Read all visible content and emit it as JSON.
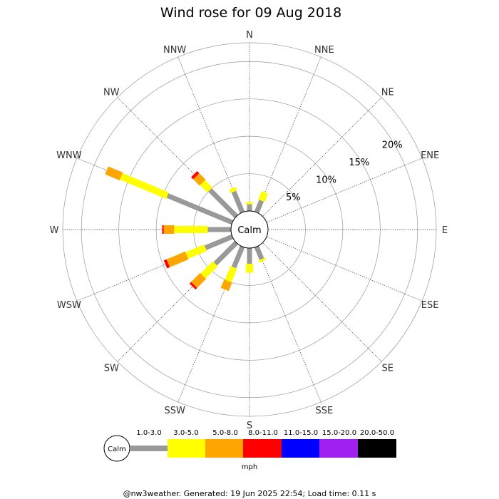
{
  "chart_data": {
    "type": "wind-rose",
    "title": "Wind rose for 09 Aug 2018",
    "directions": [
      "N",
      "NNE",
      "NE",
      "ENE",
      "E",
      "ESE",
      "SE",
      "SSE",
      "S",
      "SSW",
      "SW",
      "WSW",
      "W",
      "WNW",
      "NW",
      "NNW"
    ],
    "radial_ticks": [
      "5%",
      "10%",
      "15%",
      "20%"
    ],
    "radial_max_percent": 22.5,
    "center_label": "Calm",
    "bins": [
      {
        "label": "1.0-3.0",
        "color": "#999999"
      },
      {
        "label": "3.0-5.0",
        "color": "#ffff00"
      },
      {
        "label": "5.0-8.0",
        "color": "#ffa500"
      },
      {
        "label": "8.0-11.0",
        "color": "#ff0000"
      },
      {
        "label": "11.0-15.0",
        "color": "#0000ff"
      },
      {
        "label": "15.0-20.0",
        "color": "#a020f0"
      },
      {
        "label": "20.0-50.0",
        "color": "#000000"
      }
    ],
    "series": [
      {
        "direction": "N",
        "values": [
          0.9,
          0.3,
          0,
          0,
          0,
          0,
          0
        ]
      },
      {
        "direction": "NNE",
        "values": [
          1.7,
          1.2,
          0,
          0,
          0,
          0,
          0
        ]
      },
      {
        "direction": "NE",
        "values": [
          0.0,
          0.0,
          0,
          0,
          0,
          0,
          0
        ]
      },
      {
        "direction": "ENE",
        "values": [
          0.0,
          0.0,
          0,
          0,
          0,
          0,
          0
        ]
      },
      {
        "direction": "E",
        "values": [
          0.0,
          0.0,
          0,
          0,
          0,
          0,
          0
        ]
      },
      {
        "direction": "ESE",
        "values": [
          0.0,
          0.0,
          0,
          0,
          0,
          0,
          0
        ]
      },
      {
        "direction": "SE",
        "values": [
          0.0,
          0.0,
          0,
          0,
          0,
          0,
          0
        ]
      },
      {
        "direction": "SSE",
        "values": [
          1.8,
          0.3,
          0,
          0,
          0,
          0,
          0
        ]
      },
      {
        "direction": "S",
        "values": [
          2.1,
          1.2,
          0,
          0,
          0,
          0,
          0
        ]
      },
      {
        "direction": "SSW",
        "values": [
          3.0,
          2.0,
          1.2,
          0,
          0,
          0,
          0
        ]
      },
      {
        "direction": "SW",
        "values": [
          4.0,
          2.3,
          1.7,
          0.3,
          0,
          0,
          0
        ]
      },
      {
        "direction": "WSW",
        "values": [
          3.9,
          2.7,
          2.7,
          0.4,
          0,
          0,
          0
        ]
      },
      {
        "direction": "W",
        "values": [
          3.1,
          4.5,
          1.4,
          0.2,
          0,
          0,
          0
        ]
      },
      {
        "direction": "WNW",
        "values": [
          9.4,
          6.7,
          2.1,
          0,
          0,
          0,
          0
        ]
      },
      {
        "direction": "NW",
        "values": [
          5.0,
          1.4,
          1.2,
          0.4,
          0,
          0,
          0
        ]
      },
      {
        "direction": "NNW",
        "values": [
          3.0,
          0.5,
          0,
          0,
          0,
          0,
          0
        ]
      }
    ],
    "legend_unit": "mph"
  },
  "footer": "@nw3weather. Generated: 19 Jun 2025 22:54; Load time: 0.11 s"
}
